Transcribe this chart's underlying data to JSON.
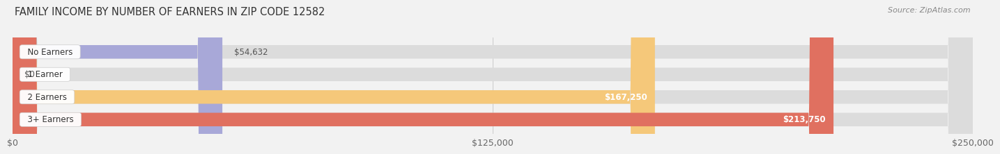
{
  "title": "FAMILY INCOME BY NUMBER OF EARNERS IN ZIP CODE 12582",
  "source": "Source: ZipAtlas.com",
  "categories": [
    "No Earners",
    "1 Earner",
    "2 Earners",
    "3+ Earners"
  ],
  "values": [
    54632,
    0,
    167250,
    213750
  ],
  "bar_colors": [
    "#a8a8d8",
    "#f4a0b0",
    "#f5c87a",
    "#e07060"
  ],
  "value_labels": [
    "$54,632",
    "$0",
    "$167,250",
    "$213,750"
  ],
  "label_inside": [
    false,
    false,
    true,
    true
  ],
  "xlim": [
    0,
    250000
  ],
  "xticks": [
    0,
    125000,
    250000
  ],
  "xtick_labels": [
    "$0",
    "$125,000",
    "$250,000"
  ],
  "background_color": "#f2f2f2",
  "bar_bg_color": "#dcdcdc",
  "bar_height": 0.6,
  "title_fontsize": 10.5,
  "source_fontsize": 8,
  "tick_fontsize": 9,
  "label_fontsize": 8.5,
  "value_fontsize": 8.5
}
